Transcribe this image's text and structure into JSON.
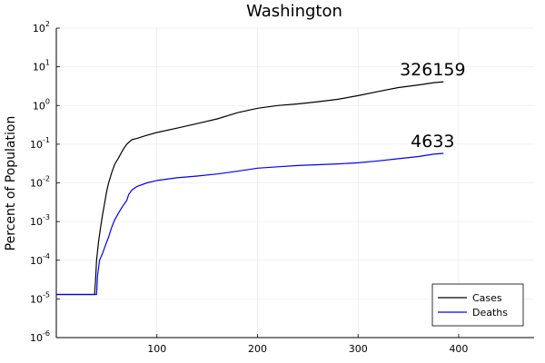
{
  "chart_data": {
    "type": "line",
    "title": "Washington",
    "xlabel": "",
    "ylabel": "Percent of Population",
    "xlim": [
      0,
      475
    ],
    "ylim": [
      1e-06,
      100
    ],
    "yscale": "log",
    "x_ticks": [
      100,
      200,
      300,
      400
    ],
    "y_ticks": [
      {
        "base": "10",
        "exp": "-6"
      },
      {
        "base": "10",
        "exp": "-5"
      },
      {
        "base": "10",
        "exp": "-4"
      },
      {
        "base": "10",
        "exp": "-3"
      },
      {
        "base": "10",
        "exp": "-2"
      },
      {
        "base": "10",
        "exp": "-1"
      },
      {
        "base": "10",
        "exp": "0"
      },
      {
        "base": "10",
        "exp": "1"
      },
      {
        "base": "10",
        "exp": "2"
      }
    ],
    "grid": true,
    "legend_position": "bottom-right",
    "series": [
      {
        "name": "Cases",
        "color": "#000000",
        "end_label": "326159",
        "points": [
          [
            0,
            1.3e-05
          ],
          [
            38,
            1.3e-05
          ],
          [
            39,
            3e-05
          ],
          [
            40,
            0.0001
          ],
          [
            42,
            0.0003
          ],
          [
            44,
            0.0007
          ],
          [
            46,
            0.0015
          ],
          [
            48,
            0.003
          ],
          [
            50,
            0.006
          ],
          [
            52,
            0.01
          ],
          [
            55,
            0.018
          ],
          [
            58,
            0.03
          ],
          [
            62,
            0.045
          ],
          [
            66,
            0.07
          ],
          [
            70,
            0.1
          ],
          [
            75,
            0.13
          ],
          [
            80,
            0.14
          ],
          [
            90,
            0.17
          ],
          [
            100,
            0.2
          ],
          [
            120,
            0.26
          ],
          [
            140,
            0.34
          ],
          [
            160,
            0.45
          ],
          [
            180,
            0.65
          ],
          [
            200,
            0.85
          ],
          [
            220,
            1.0
          ],
          [
            240,
            1.1
          ],
          [
            260,
            1.25
          ],
          [
            280,
            1.45
          ],
          [
            300,
            1.8
          ],
          [
            320,
            2.3
          ],
          [
            340,
            2.9
          ],
          [
            360,
            3.4
          ],
          [
            375,
            3.9
          ],
          [
            385,
            4.1
          ]
        ]
      },
      {
        "name": "Deaths",
        "color": "#0000ff",
        "end_label": "4633",
        "points": [
          [
            0,
            1.3e-05
          ],
          [
            40,
            1.3e-05
          ],
          [
            41,
            4e-05
          ],
          [
            43,
            0.0001
          ],
          [
            46,
            0.00015
          ],
          [
            49,
            0.00025
          ],
          [
            52,
            0.0004
          ],
          [
            55,
            0.0007
          ],
          [
            58,
            0.0011
          ],
          [
            62,
            0.0017
          ],
          [
            66,
            0.0025
          ],
          [
            70,
            0.0035
          ],
          [
            72,
            0.005
          ],
          [
            75,
            0.0065
          ],
          [
            80,
            0.008
          ],
          [
            90,
            0.01
          ],
          [
            100,
            0.0115
          ],
          [
            120,
            0.0135
          ],
          [
            140,
            0.015
          ],
          [
            160,
            0.017
          ],
          [
            180,
            0.02
          ],
          [
            200,
            0.024
          ],
          [
            220,
            0.026
          ],
          [
            240,
            0.028
          ],
          [
            260,
            0.0295
          ],
          [
            280,
            0.031
          ],
          [
            300,
            0.033
          ],
          [
            320,
            0.037
          ],
          [
            340,
            0.042
          ],
          [
            360,
            0.048
          ],
          [
            375,
            0.055
          ],
          [
            385,
            0.058
          ]
        ]
      }
    ]
  }
}
